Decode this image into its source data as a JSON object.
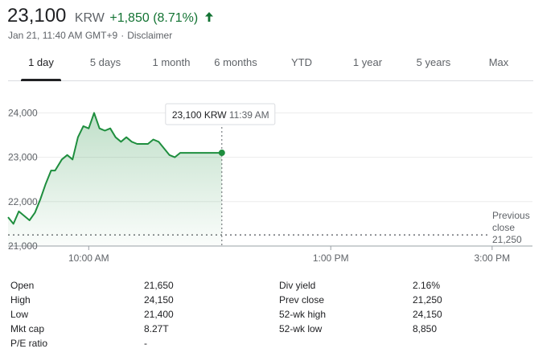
{
  "header": {
    "price": "23,100",
    "currency": "KRW",
    "change": "+1,850 (8.71%)",
    "change_color": "#137333",
    "change_icon": "arrow-up-icon",
    "timestamp": "Jan 21, 11:40 AM GMT+9",
    "separator": "·",
    "disclaimer": "Disclaimer"
  },
  "tabs": [
    {
      "label": "1 day",
      "active": true
    },
    {
      "label": "5 days",
      "active": false
    },
    {
      "label": "1 month",
      "active": false
    },
    {
      "label": "6 months",
      "active": false
    },
    {
      "label": "YTD",
      "active": false
    },
    {
      "label": "1 year",
      "active": false
    },
    {
      "label": "5 years",
      "active": false
    },
    {
      "label": "Max",
      "active": false
    }
  ],
  "chart_data": {
    "type": "area",
    "line_color": "#1e8e3e",
    "y_ticks": [
      "24,000",
      "23,000",
      "22,000",
      "21,000"
    ],
    "y_tick_values": [
      24000,
      23000,
      22000,
      21000
    ],
    "ylim": [
      21000,
      24550
    ],
    "x_ticks": [
      "10:00 AM",
      "1:00 PM",
      "3:00 PM"
    ],
    "x_tick_values": [
      "10:00",
      "13:00",
      "15:00"
    ],
    "session": [
      "09:00",
      "15:30"
    ],
    "tooltip": {
      "price": "23,100 KRW",
      "time": "11:39 AM"
    },
    "previous_close": {
      "label_line1": "Previous",
      "label_line2": "close",
      "value": "21,250",
      "y": 21250
    },
    "series": [
      {
        "x": [
          "09:00",
          "09:04",
          "09:08",
          "09:16",
          "09:20",
          "09:24",
          "09:28",
          "09:32",
          "09:35",
          "09:40",
          "09:44",
          "09:48",
          "09:52",
          "09:56",
          "10:00",
          "10:04",
          "10:08",
          "10:12",
          "10:16",
          "10:20",
          "10:24",
          "10:28",
          "10:32",
          "10:36",
          "10:40",
          "10:44",
          "10:48",
          "10:52",
          "10:56",
          "11:00",
          "11:04",
          "11:08",
          "11:12",
          "11:16",
          "11:20",
          "11:24",
          "11:28",
          "11:32",
          "11:36",
          "11:39"
        ],
        "y": [
          21650,
          21500,
          21780,
          21580,
          21750,
          22050,
          22400,
          22700,
          22700,
          22950,
          23050,
          22950,
          23450,
          23700,
          23650,
          24000,
          23650,
          23600,
          23650,
          23450,
          23350,
          23450,
          23350,
          23300,
          23300,
          23300,
          23400,
          23350,
          23200,
          23050,
          23000,
          23100,
          23100,
          23100,
          23100,
          23100,
          23100,
          23100,
          23100,
          23100
        ]
      }
    ]
  },
  "stats": {
    "left": [
      {
        "label": "Open",
        "value": "21,650"
      },
      {
        "label": "High",
        "value": "24,150"
      },
      {
        "label": "Low",
        "value": "21,400"
      },
      {
        "label": "Mkt cap",
        "value": "8.27T"
      },
      {
        "label": "P/E ratio",
        "value": "-"
      }
    ],
    "right": [
      {
        "label": "Div yield",
        "value": "2.16%"
      },
      {
        "label": "Prev close",
        "value": "21,250"
      },
      {
        "label": "52-wk high",
        "value": "24,150"
      },
      {
        "label": "52-wk low",
        "value": "8,850"
      }
    ]
  }
}
